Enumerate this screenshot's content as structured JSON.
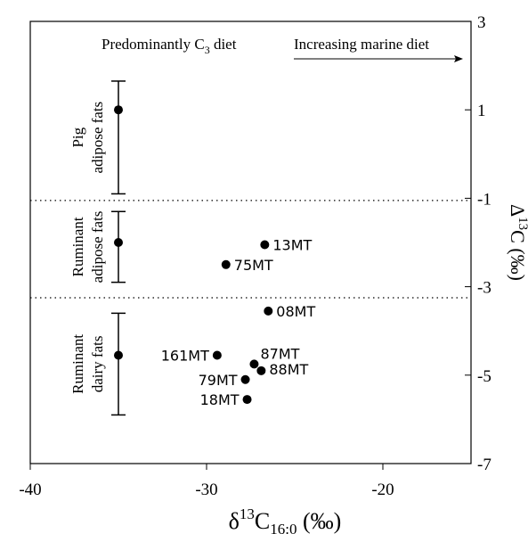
{
  "chart_data": {
    "type": "scatter",
    "title": "",
    "xlabel": {
      "base": "δ",
      "sup": "13",
      "main": "C",
      "sub": "16:0",
      "unit": " (‰)"
    },
    "ylabel": {
      "base": "Δ",
      "sup": "13",
      "main": "C",
      "unit": " (‰)"
    },
    "xlim": [
      -40,
      -15
    ],
    "ylim": [
      -7,
      3
    ],
    "x_ticks": [
      -40,
      -30,
      -20
    ],
    "x_tick_labels": [
      "-40",
      "-30",
      "-20"
    ],
    "y_ticks": [
      -7,
      -5,
      -3,
      -1,
      1,
      3
    ],
    "y_tick_labels": [
      "-7",
      "-5",
      "-3",
      "-1",
      "1",
      "3"
    ],
    "y_axis_side": "right",
    "grid": false,
    "dividers": [
      -1.05,
      -3.25
    ],
    "annotations": {
      "diet_left": {
        "pre": "Predominantly C",
        "sub": "3",
        "post": " diet"
      },
      "diet_right": "Increasing marine diet"
    },
    "reference_ranges": [
      {
        "label_lines": [
          "Pig",
          "adipose fats"
        ],
        "x": -35,
        "y": 1.0,
        "y_low": -0.9,
        "y_high": 1.65
      },
      {
        "label_lines": [
          "Ruminant",
          "adipose fats"
        ],
        "x": -35,
        "y": -2.0,
        "y_low": -2.9,
        "y_high": -1.3
      },
      {
        "label_lines": [
          "Ruminant",
          "dairy fats"
        ],
        "x": -35,
        "y": -4.55,
        "y_low": -5.9,
        "y_high": -3.6
      }
    ],
    "points": [
      {
        "label": "13MT",
        "x": -26.7,
        "y": -2.05
      },
      {
        "label": "75MT",
        "x": -28.9,
        "y": -2.5
      },
      {
        "label": "08MT",
        "x": -26.5,
        "y": -3.55
      },
      {
        "label": "161MT",
        "x": -29.4,
        "y": -4.55
      },
      {
        "label": "87MT",
        "x": -27.3,
        "y": -4.75
      },
      {
        "label": "88MT",
        "x": -26.9,
        "y": -4.9
      },
      {
        "label": "79MT",
        "x": -27.8,
        "y": -5.1
      },
      {
        "label": "18MT",
        "x": -27.7,
        "y": -5.55
      }
    ]
  }
}
